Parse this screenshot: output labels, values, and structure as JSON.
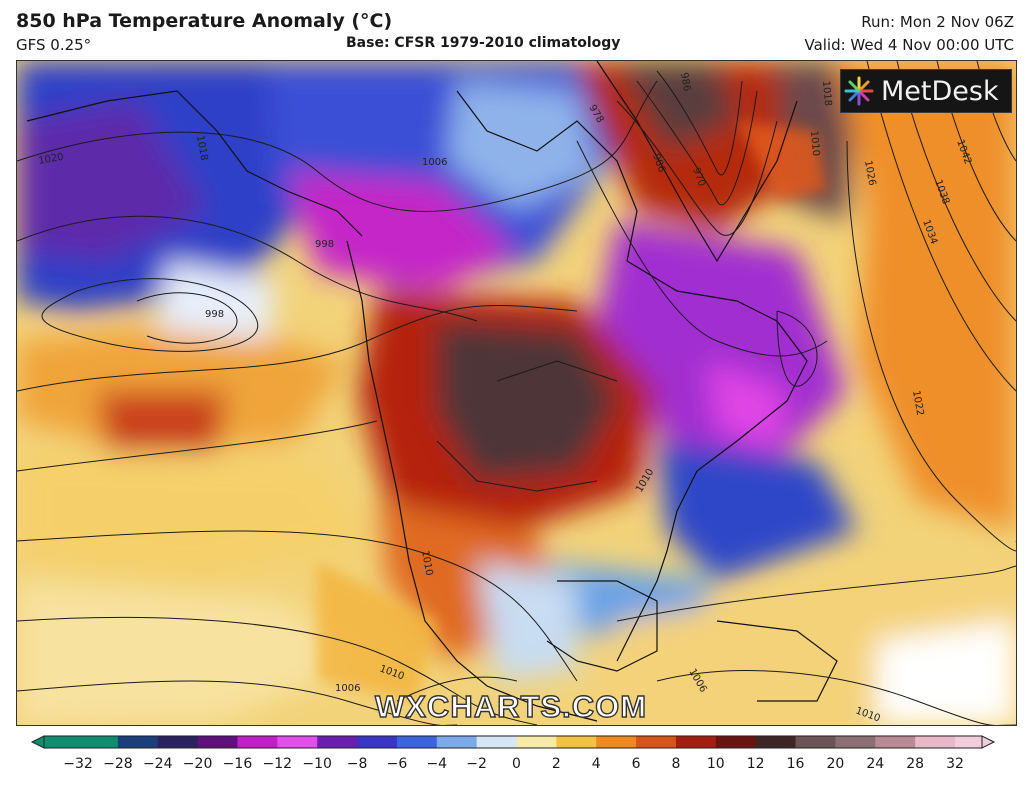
{
  "header": {
    "title": "850 hPa Temperature Anomaly (°C)",
    "subtitle": "GFS 0.25°",
    "base": "Base: CFSR 1979-2010 climatology",
    "run": "Run: Mon 2 Nov 06Z",
    "valid": "Valid: Wed 4 Nov 00:00 UTC"
  },
  "logo": {
    "text": "MetDesk",
    "icon": "metdesk-burst-icon"
  },
  "watermark": "WXCHARTS.COM",
  "colorbar": {
    "ticks": [
      "−32",
      "−28",
      "−24",
      "−20",
      "−16",
      "−12",
      "−10",
      "−8",
      "−6",
      "−4",
      "−2",
      "0",
      "2",
      "4",
      "6",
      "8",
      "10",
      "12",
      "16",
      "20",
      "24",
      "28",
      "32"
    ],
    "colors": [
      "#0d8f6f",
      "#1a3f7a",
      "#2a2260",
      "#60107a",
      "#c21fc6",
      "#e34ee8",
      "#6a1fb0",
      "#3a34c9",
      "#3c63e0",
      "#7ca9ea",
      "#d6e6f5",
      "#f7eaa8",
      "#f2c341",
      "#f08a1e",
      "#d8541a",
      "#a61d12",
      "#6a1410",
      "#3e2526",
      "#6b5457",
      "#8b6f74",
      "#b98a96",
      "#e8b8c8"
    ]
  },
  "isobars": [
    "1018",
    "1020",
    "1006",
    "998",
    "998",
    "1010",
    "1010",
    "1010",
    "1006",
    "1006",
    "1022",
    "1026",
    "1034",
    "1038",
    "1042",
    "1018",
    "1010",
    "986",
    "978",
    "970",
    "986",
    "1010"
  ]
}
